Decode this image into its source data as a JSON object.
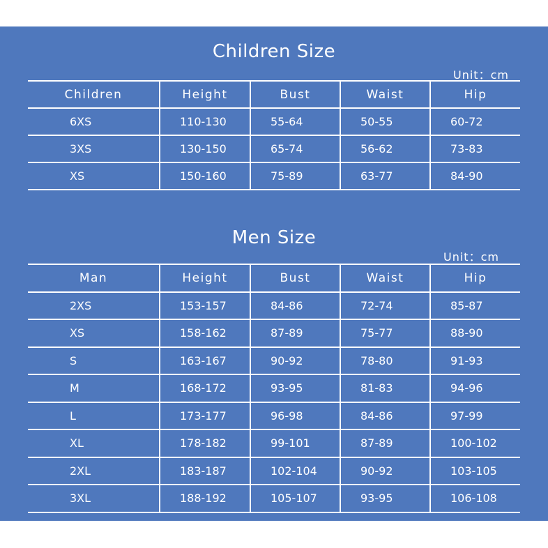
{
  "children": {
    "title": "Children Size",
    "unit": "Unit：cm",
    "headers": [
      "Children",
      "Height",
      "Bust",
      "Waist",
      "Hip"
    ],
    "rows": [
      [
        "6XS",
        "110-130",
        "55-64",
        "50-55",
        "60-72"
      ],
      [
        "3XS",
        "130-150",
        "65-74",
        "56-62",
        "73-83"
      ],
      [
        "XS",
        "150-160",
        "75-89",
        "63-77",
        "84-90"
      ]
    ]
  },
  "men": {
    "title": "Men Size",
    "unit": "Unit：cm",
    "headers": [
      "Man",
      "Height",
      "Bust",
      "Waist",
      "Hip"
    ],
    "rows": [
      [
        "2XS",
        "153-157",
        "84-86",
        "72-74",
        "85-87"
      ],
      [
        "XS",
        "158-162",
        "87-89",
        "75-77",
        "88-90"
      ],
      [
        "S",
        "163-167",
        "90-92",
        "78-80",
        "91-93"
      ],
      [
        "M",
        "168-172",
        "93-95",
        "81-83",
        "94-96"
      ],
      [
        "L",
        "173-177",
        "96-98",
        "84-86",
        "97-99"
      ],
      [
        "XL",
        "178-182",
        "99-101",
        "87-89",
        "100-102"
      ],
      [
        "2XL",
        "183-187",
        "102-104",
        "90-92",
        "103-105"
      ],
      [
        "3XL",
        "188-192",
        "105-107",
        "93-95",
        "106-108"
      ]
    ]
  },
  "colors": {
    "panel": "#4f78bd",
    "text": "#ffffff",
    "page": "#ffffff"
  }
}
